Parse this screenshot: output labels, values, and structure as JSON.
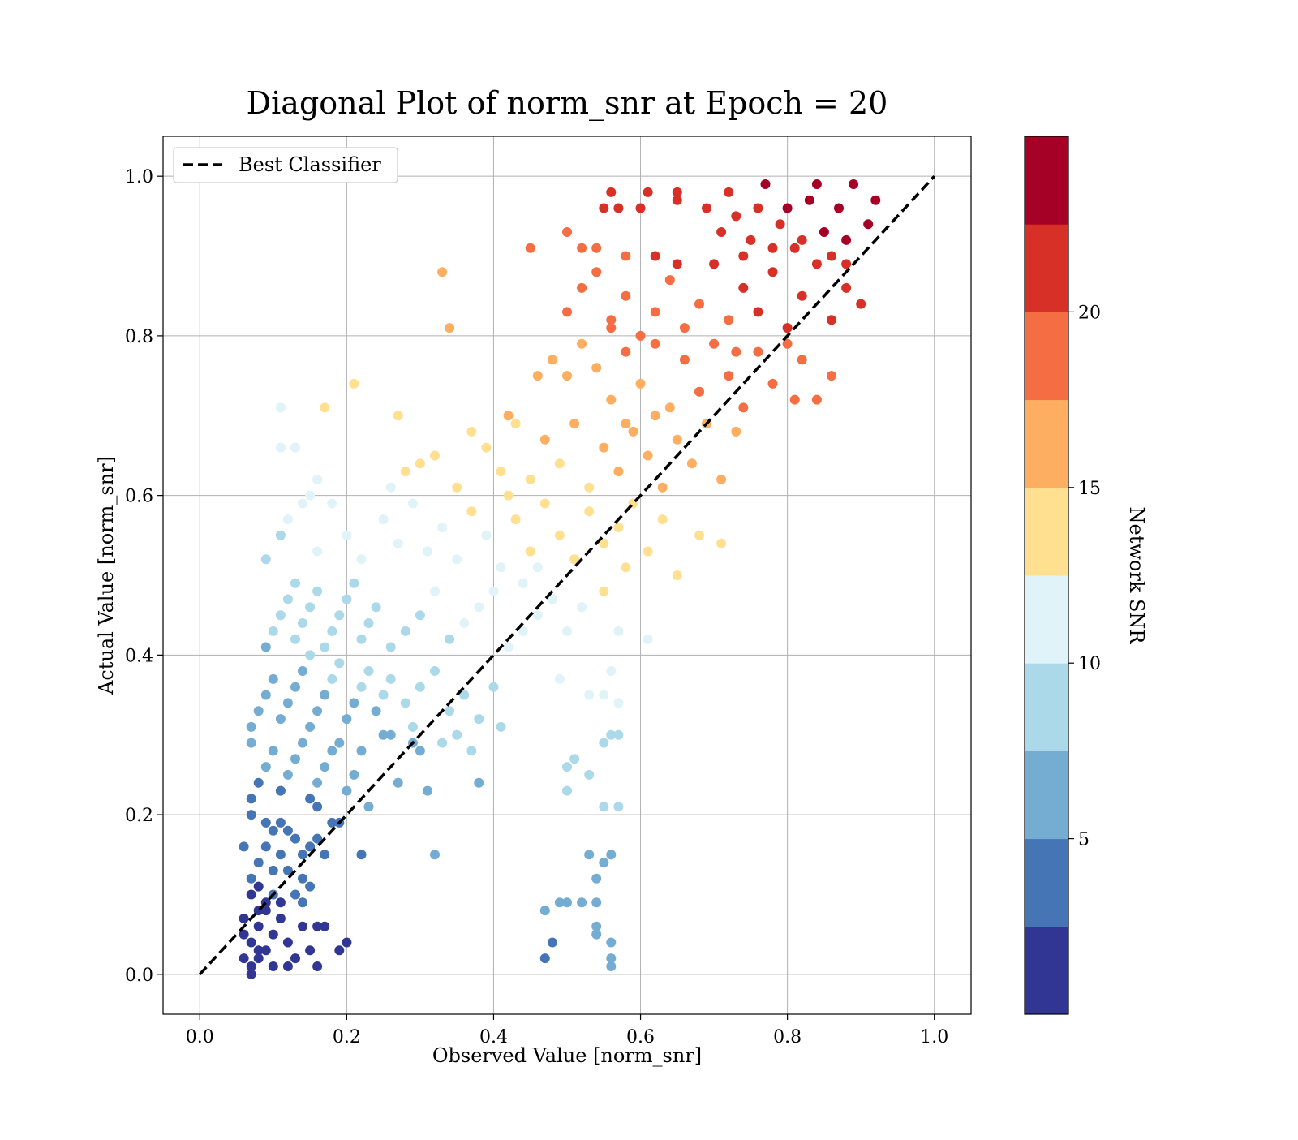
{
  "chart_data": {
    "type": "scatter",
    "title": "Diagonal Plot of norm_snr at Epoch = 20",
    "xlabel": "Observed Value [norm_snr]",
    "ylabel": "Actual Value [norm_snr]",
    "xlim": [
      -0.05,
      1.05
    ],
    "ylim": [
      -0.05,
      1.05
    ],
    "xticks": [
      "0.0",
      "0.2",
      "0.4",
      "0.6",
      "0.8",
      "1.0"
    ],
    "yticks": [
      "0.0",
      "0.2",
      "0.4",
      "0.6",
      "0.8",
      "1.0"
    ],
    "grid": true,
    "legend": {
      "placement": "upper-left",
      "entries": [
        "Best Classifier"
      ]
    },
    "reference_line": {
      "name": "Best Classifier",
      "style": "dashed",
      "color": "#000000",
      "x": [
        0,
        1
      ],
      "y": [
        0,
        1
      ]
    },
    "colorbar": {
      "label": "Network SNR",
      "ticks": [
        "5",
        "10",
        "15",
        "20"
      ],
      "range": [
        0,
        25
      ],
      "tick_values": [
        5,
        10,
        15,
        20
      ],
      "colors": [
        "#313695",
        "#4575b4",
        "#74add1",
        "#abd9e9",
        "#e0f3f8",
        "#fee090",
        "#fdae61",
        "#f46d43",
        "#d73027",
        "#a50026"
      ]
    },
    "points": [
      [
        0.07,
        0.01
      ],
      [
        0.08,
        0.02
      ],
      [
        0.09,
        0.03
      ],
      [
        0.07,
        0.04
      ],
      [
        0.1,
        0.05
      ],
      [
        0.08,
        0.06
      ],
      [
        0.06,
        0.07
      ],
      [
        0.09,
        0.08
      ],
      [
        0.11,
        0.09
      ],
      [
        0.07,
        0.1
      ],
      [
        0.12,
        0.04
      ],
      [
        0.13,
        0.02
      ],
      [
        0.1,
        0.01
      ],
      [
        0.08,
        0.03
      ],
      [
        0.06,
        0.05
      ],
      [
        0.09,
        0.09
      ],
      [
        0.11,
        0.07
      ],
      [
        0.14,
        0.06
      ],
      [
        0.15,
        0.03
      ],
      [
        0.16,
        0.06
      ],
      [
        0.17,
        0.06
      ],
      [
        0.16,
        0.01
      ],
      [
        0.19,
        0.03
      ],
      [
        0.2,
        0.04
      ],
      [
        0.07,
        0.0
      ],
      [
        0.12,
        0.01
      ],
      [
        0.14,
        0.09
      ],
      [
        0.1,
        0.1
      ],
      [
        0.06,
        0.02
      ],
      [
        0.08,
        0.08
      ],
      [
        0.47,
        0.08
      ],
      [
        0.49,
        0.09
      ],
      [
        0.5,
        0.09
      ],
      [
        0.52,
        0.09
      ],
      [
        0.54,
        0.09
      ],
      [
        0.54,
        0.06
      ],
      [
        0.54,
        0.05
      ],
      [
        0.48,
        0.04
      ],
      [
        0.47,
        0.02
      ],
      [
        0.56,
        0.04
      ],
      [
        0.56,
        0.02
      ],
      [
        0.56,
        0.01
      ],
      [
        0.07,
        0.12
      ],
      [
        0.08,
        0.14
      ],
      [
        0.09,
        0.16
      ],
      [
        0.1,
        0.18
      ],
      [
        0.07,
        0.2
      ],
      [
        0.11,
        0.15
      ],
      [
        0.12,
        0.13
      ],
      [
        0.13,
        0.17
      ],
      [
        0.08,
        0.11
      ],
      [
        0.1,
        0.13
      ],
      [
        0.14,
        0.15
      ],
      [
        0.15,
        0.16
      ],
      [
        0.16,
        0.17
      ],
      [
        0.18,
        0.19
      ],
      [
        0.19,
        0.19
      ],
      [
        0.17,
        0.15
      ],
      [
        0.09,
        0.19
      ],
      [
        0.11,
        0.19
      ],
      [
        0.06,
        0.16
      ],
      [
        0.12,
        0.18
      ],
      [
        0.14,
        0.12
      ],
      [
        0.15,
        0.11
      ],
      [
        0.13,
        0.1
      ],
      [
        0.22,
        0.15
      ],
      [
        0.32,
        0.15
      ],
      [
        0.53,
        0.15
      ],
      [
        0.56,
        0.15
      ],
      [
        0.55,
        0.14
      ],
      [
        0.54,
        0.12
      ],
      [
        0.07,
        0.22
      ],
      [
        0.08,
        0.24
      ],
      [
        0.09,
        0.26
      ],
      [
        0.1,
        0.28
      ],
      [
        0.07,
        0.29
      ],
      [
        0.11,
        0.23
      ],
      [
        0.12,
        0.25
      ],
      [
        0.13,
        0.27
      ],
      [
        0.14,
        0.29
      ],
      [
        0.15,
        0.22
      ],
      [
        0.16,
        0.24
      ],
      [
        0.17,
        0.26
      ],
      [
        0.18,
        0.28
      ],
      [
        0.19,
        0.29
      ],
      [
        0.2,
        0.23
      ],
      [
        0.21,
        0.25
      ],
      [
        0.22,
        0.28
      ],
      [
        0.25,
        0.3
      ],
      [
        0.27,
        0.24
      ],
      [
        0.29,
        0.29
      ],
      [
        0.31,
        0.23
      ],
      [
        0.3,
        0.28
      ],
      [
        0.33,
        0.29
      ],
      [
        0.35,
        0.3
      ],
      [
        0.37,
        0.28
      ],
      [
        0.38,
        0.24
      ],
      [
        0.5,
        0.26
      ],
      [
        0.51,
        0.27
      ],
      [
        0.5,
        0.23
      ],
      [
        0.53,
        0.25
      ],
      [
        0.55,
        0.29
      ],
      [
        0.56,
        0.3
      ],
      [
        0.57,
        0.3
      ],
      [
        0.55,
        0.21
      ],
      [
        0.57,
        0.21
      ],
      [
        0.26,
        0.3
      ],
      [
        0.23,
        0.21
      ],
      [
        0.16,
        0.21
      ],
      [
        0.07,
        0.31
      ],
      [
        0.08,
        0.33
      ],
      [
        0.09,
        0.35
      ],
      [
        0.1,
        0.37
      ],
      [
        0.11,
        0.32
      ],
      [
        0.12,
        0.34
      ],
      [
        0.13,
        0.36
      ],
      [
        0.14,
        0.38
      ],
      [
        0.15,
        0.31
      ],
      [
        0.16,
        0.33
      ],
      [
        0.17,
        0.35
      ],
      [
        0.18,
        0.37
      ],
      [
        0.19,
        0.39
      ],
      [
        0.2,
        0.32
      ],
      [
        0.21,
        0.34
      ],
      [
        0.22,
        0.36
      ],
      [
        0.23,
        0.38
      ],
      [
        0.24,
        0.33
      ],
      [
        0.25,
        0.35
      ],
      [
        0.26,
        0.37
      ],
      [
        0.28,
        0.34
      ],
      [
        0.3,
        0.36
      ],
      [
        0.32,
        0.38
      ],
      [
        0.34,
        0.33
      ],
      [
        0.36,
        0.35
      ],
      [
        0.38,
        0.32
      ],
      [
        0.4,
        0.36
      ],
      [
        0.41,
        0.31
      ],
      [
        0.53,
        0.35
      ],
      [
        0.55,
        0.35
      ],
      [
        0.56,
        0.38
      ],
      [
        0.57,
        0.34
      ],
      [
        0.49,
        0.37
      ],
      [
        0.29,
        0.31
      ],
      [
        0.09,
        0.41
      ],
      [
        0.1,
        0.43
      ],
      [
        0.11,
        0.45
      ],
      [
        0.12,
        0.47
      ],
      [
        0.13,
        0.42
      ],
      [
        0.14,
        0.44
      ],
      [
        0.15,
        0.46
      ],
      [
        0.16,
        0.48
      ],
      [
        0.17,
        0.41
      ],
      [
        0.18,
        0.43
      ],
      [
        0.19,
        0.45
      ],
      [
        0.2,
        0.47
      ],
      [
        0.21,
        0.49
      ],
      [
        0.22,
        0.42
      ],
      [
        0.23,
        0.44
      ],
      [
        0.24,
        0.46
      ],
      [
        0.26,
        0.41
      ],
      [
        0.28,
        0.43
      ],
      [
        0.3,
        0.45
      ],
      [
        0.32,
        0.48
      ],
      [
        0.34,
        0.42
      ],
      [
        0.36,
        0.44
      ],
      [
        0.38,
        0.46
      ],
      [
        0.4,
        0.48
      ],
      [
        0.42,
        0.41
      ],
      [
        0.44,
        0.43
      ],
      [
        0.46,
        0.45
      ],
      [
        0.48,
        0.47
      ],
      [
        0.5,
        0.43
      ],
      [
        0.52,
        0.46
      ],
      [
        0.55,
        0.48
      ],
      [
        0.57,
        0.43
      ],
      [
        0.61,
        0.42
      ],
      [
        0.13,
        0.49
      ],
      [
        0.15,
        0.4
      ],
      [
        0.44,
        0.49
      ],
      [
        0.09,
        0.52
      ],
      [
        0.11,
        0.55
      ],
      [
        0.12,
        0.57
      ],
      [
        0.14,
        0.59
      ],
      [
        0.16,
        0.53
      ],
      [
        0.18,
        0.59
      ],
      [
        0.2,
        0.55
      ],
      [
        0.22,
        0.52
      ],
      [
        0.25,
        0.57
      ],
      [
        0.27,
        0.54
      ],
      [
        0.29,
        0.59
      ],
      [
        0.31,
        0.53
      ],
      [
        0.33,
        0.56
      ],
      [
        0.35,
        0.52
      ],
      [
        0.37,
        0.58
      ],
      [
        0.39,
        0.55
      ],
      [
        0.41,
        0.51
      ],
      [
        0.43,
        0.57
      ],
      [
        0.45,
        0.53
      ],
      [
        0.47,
        0.59
      ],
      [
        0.49,
        0.55
      ],
      [
        0.51,
        0.52
      ],
      [
        0.53,
        0.58
      ],
      [
        0.55,
        0.54
      ],
      [
        0.57,
        0.56
      ],
      [
        0.59,
        0.59
      ],
      [
        0.61,
        0.53
      ],
      [
        0.63,
        0.57
      ],
      [
        0.65,
        0.5
      ],
      [
        0.68,
        0.55
      ],
      [
        0.71,
        0.54
      ],
      [
        0.42,
        0.6
      ],
      [
        0.46,
        0.51
      ],
      [
        0.58,
        0.51
      ],
      [
        0.15,
        0.6
      ],
      [
        0.16,
        0.62
      ],
      [
        0.26,
        0.61
      ],
      [
        0.28,
        0.63
      ],
      [
        0.3,
        0.64
      ],
      [
        0.32,
        0.65
      ],
      [
        0.35,
        0.61
      ],
      [
        0.37,
        0.68
      ],
      [
        0.39,
        0.66
      ],
      [
        0.41,
        0.63
      ],
      [
        0.43,
        0.69
      ],
      [
        0.45,
        0.62
      ],
      [
        0.47,
        0.67
      ],
      [
        0.49,
        0.64
      ],
      [
        0.51,
        0.69
      ],
      [
        0.53,
        0.61
      ],
      [
        0.55,
        0.66
      ],
      [
        0.57,
        0.63
      ],
      [
        0.59,
        0.68
      ],
      [
        0.61,
        0.65
      ],
      [
        0.63,
        0.61
      ],
      [
        0.65,
        0.67
      ],
      [
        0.67,
        0.64
      ],
      [
        0.69,
        0.69
      ],
      [
        0.71,
        0.62
      ],
      [
        0.73,
        0.68
      ],
      [
        0.62,
        0.7
      ],
      [
        0.58,
        0.69
      ],
      [
        0.11,
        0.66
      ],
      [
        0.13,
        0.66
      ],
      [
        0.11,
        0.71
      ],
      [
        0.17,
        0.71
      ],
      [
        0.21,
        0.74
      ],
      [
        0.27,
        0.7
      ],
      [
        0.42,
        0.7
      ],
      [
        0.46,
        0.75
      ],
      [
        0.48,
        0.77
      ],
      [
        0.5,
        0.75
      ],
      [
        0.52,
        0.79
      ],
      [
        0.54,
        0.76
      ],
      [
        0.56,
        0.72
      ],
      [
        0.58,
        0.78
      ],
      [
        0.6,
        0.74
      ],
      [
        0.62,
        0.79
      ],
      [
        0.64,
        0.71
      ],
      [
        0.66,
        0.77
      ],
      [
        0.68,
        0.73
      ],
      [
        0.7,
        0.79
      ],
      [
        0.72,
        0.75
      ],
      [
        0.74,
        0.71
      ],
      [
        0.76,
        0.78
      ],
      [
        0.78,
        0.74
      ],
      [
        0.8,
        0.79
      ],
      [
        0.82,
        0.77
      ],
      [
        0.84,
        0.72
      ],
      [
        0.86,
        0.75
      ],
      [
        0.81,
        0.72
      ],
      [
        0.73,
        0.78
      ],
      [
        0.34,
        0.81
      ],
      [
        0.33,
        0.88
      ],
      [
        0.5,
        0.83
      ],
      [
        0.52,
        0.86
      ],
      [
        0.54,
        0.88
      ],
      [
        0.56,
        0.82
      ],
      [
        0.58,
        0.85
      ],
      [
        0.6,
        0.8
      ],
      [
        0.62,
        0.83
      ],
      [
        0.64,
        0.87
      ],
      [
        0.66,
        0.81
      ],
      [
        0.68,
        0.84
      ],
      [
        0.7,
        0.89
      ],
      [
        0.72,
        0.82
      ],
      [
        0.74,
        0.86
      ],
      [
        0.76,
        0.83
      ],
      [
        0.78,
        0.88
      ],
      [
        0.8,
        0.81
      ],
      [
        0.82,
        0.85
      ],
      [
        0.84,
        0.89
      ],
      [
        0.86,
        0.82
      ],
      [
        0.88,
        0.86
      ],
      [
        0.9,
        0.84
      ],
      [
        0.88,
        0.89
      ],
      [
        0.65,
        0.89
      ],
      [
        0.56,
        0.81
      ],
      [
        0.45,
        0.91
      ],
      [
        0.5,
        0.93
      ],
      [
        0.52,
        0.91
      ],
      [
        0.55,
        0.96
      ],
      [
        0.56,
        0.98
      ],
      [
        0.57,
        0.96
      ],
      [
        0.6,
        0.96
      ],
      [
        0.61,
        0.98
      ],
      [
        0.65,
        0.98
      ],
      [
        0.65,
        0.97
      ],
      [
        0.69,
        0.96
      ],
      [
        0.71,
        0.93
      ],
      [
        0.73,
        0.95
      ],
      [
        0.75,
        0.92
      ],
      [
        0.77,
        0.99
      ],
      [
        0.79,
        0.94
      ],
      [
        0.81,
        0.91
      ],
      [
        0.83,
        0.97
      ],
      [
        0.85,
        0.93
      ],
      [
        0.87,
        0.96
      ],
      [
        0.89,
        0.99
      ],
      [
        0.91,
        0.94
      ],
      [
        0.92,
        0.97
      ],
      [
        0.84,
        0.99
      ],
      [
        0.8,
        0.96
      ],
      [
        0.76,
        0.96
      ],
      [
        0.72,
        0.98
      ],
      [
        0.82,
        0.92
      ],
      [
        0.86,
        0.9
      ],
      [
        0.88,
        0.92
      ],
      [
        0.78,
        0.91
      ],
      [
        0.74,
        0.9
      ],
      [
        0.62,
        0.9
      ],
      [
        0.58,
        0.9
      ],
      [
        0.54,
        0.91
      ]
    ]
  }
}
